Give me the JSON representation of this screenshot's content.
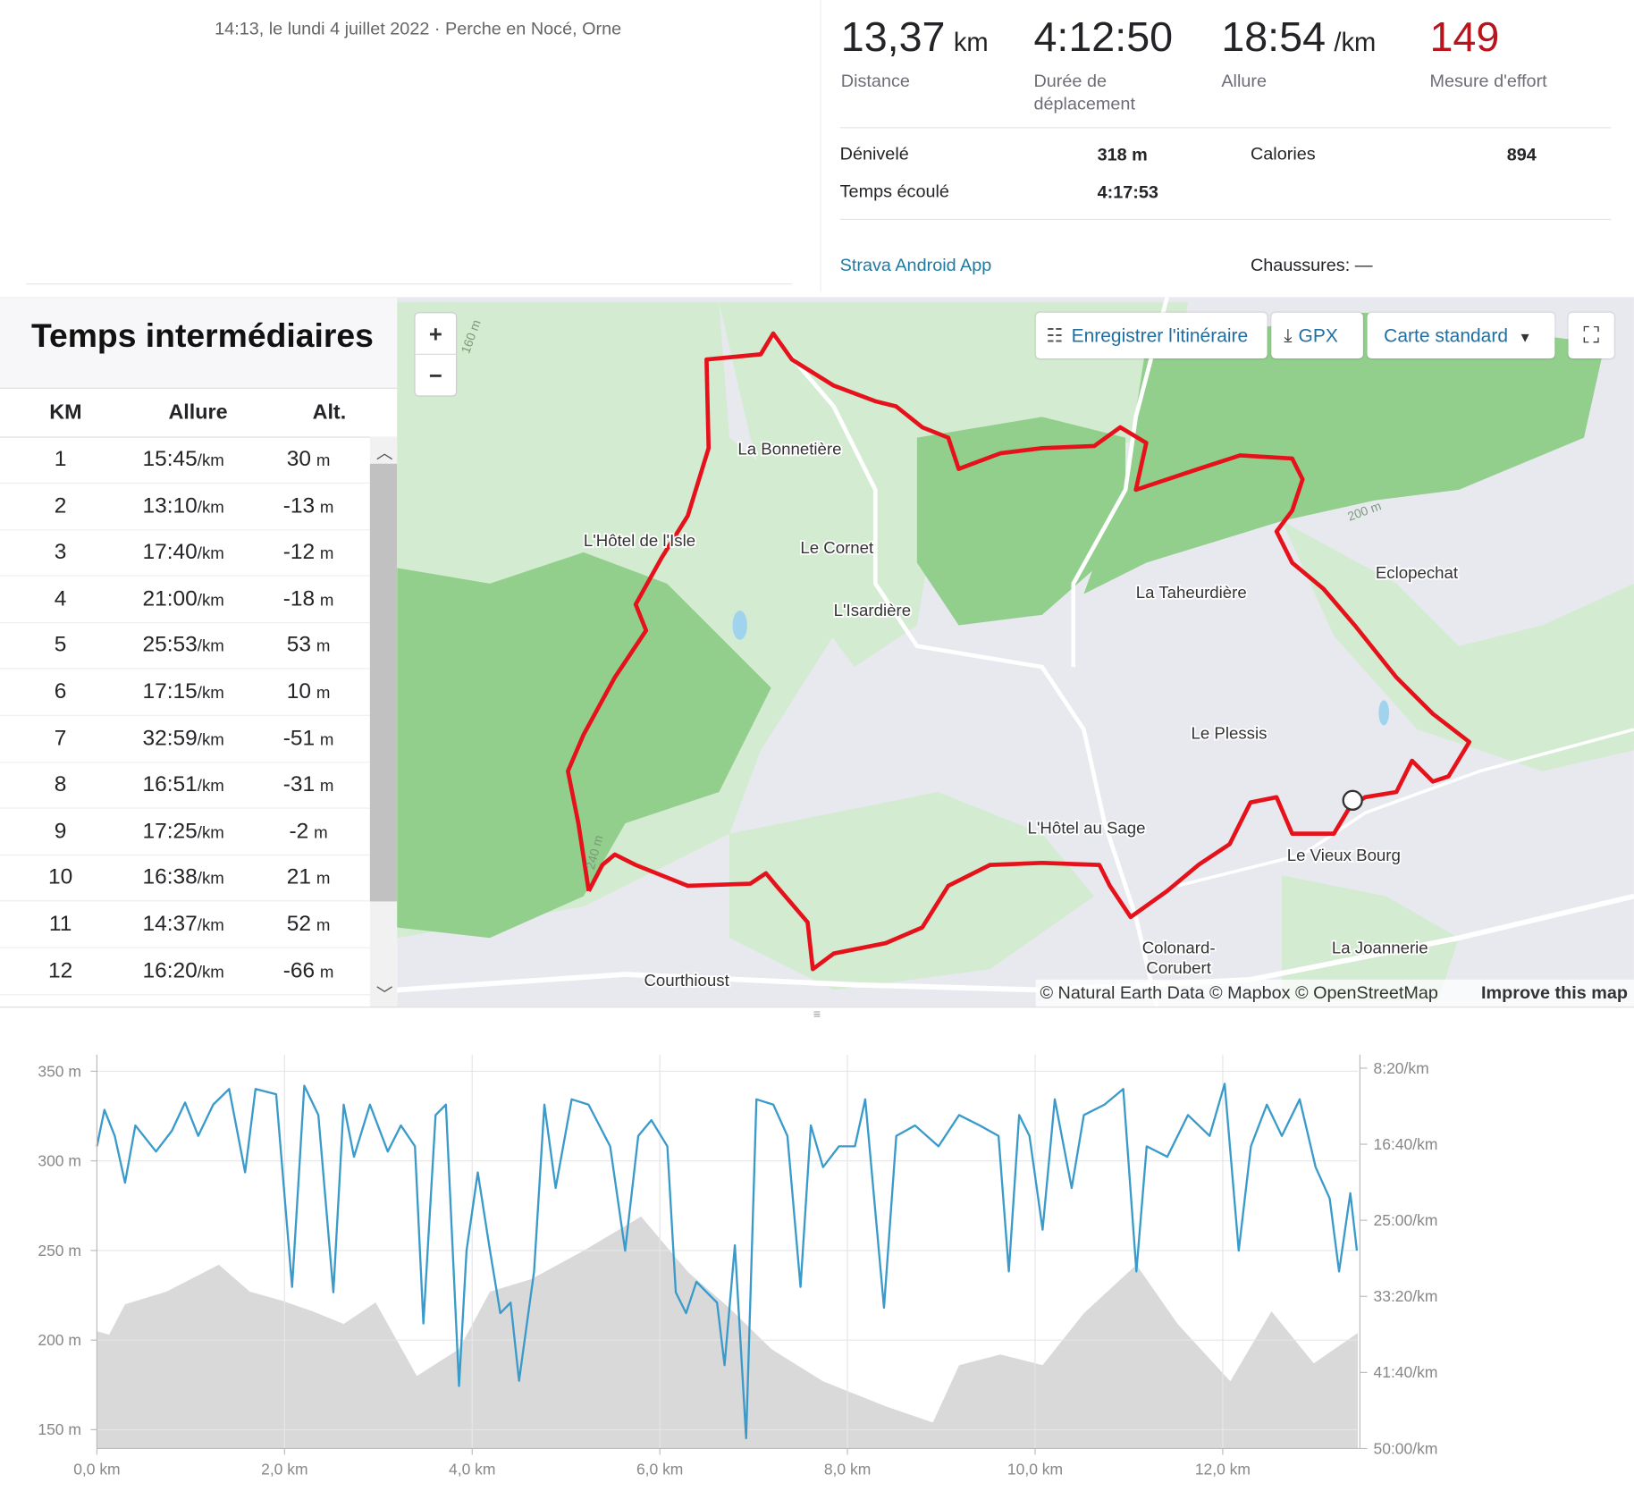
{
  "header": {
    "datetime_location": "14:13, le lundi 4 juillet 2022 · Perche en Nocé, Orne"
  },
  "stats": [
    {
      "value": "13,37",
      "unit": "km",
      "label": "Distance"
    },
    {
      "value": "4:12:50",
      "label": "Durée de déplacement"
    },
    {
      "value": "18:54",
      "unit": "/km",
      "label": "Allure"
    },
    {
      "value": "149",
      "label": "Mesure d'effort"
    }
  ],
  "details": [
    {
      "label": "Dénivelé",
      "value": "318 m"
    },
    {
      "label": "Calories",
      "value": "894"
    },
    {
      "label": "Temps écoulé",
      "value": "4:17:53"
    }
  ],
  "device": "Strava Android App",
  "shoes": "Chaussures: —",
  "splits": {
    "title": "Temps intermédiaires",
    "headers": [
      "KM",
      "Allure",
      "Alt."
    ],
    "rows": [
      {
        "km": "1",
        "pace": "15:45",
        "pace_unit": "/km",
        "alt": "30",
        "alt_unit": "m"
      },
      {
        "km": "2",
        "pace": "13:10",
        "pace_unit": "/km",
        "alt": "-13",
        "alt_unit": "m"
      },
      {
        "km": "3",
        "pace": "17:40",
        "pace_unit": "/km",
        "alt": "-12",
        "alt_unit": "m"
      },
      {
        "km": "4",
        "pace": "21:00",
        "pace_unit": "/km",
        "alt": "-18",
        "alt_unit": "m"
      },
      {
        "km": "5",
        "pace": "25:53",
        "pace_unit": "/km",
        "alt": "53",
        "alt_unit": "m"
      },
      {
        "km": "6",
        "pace": "17:15",
        "pace_unit": "/km",
        "alt": "10",
        "alt_unit": "m"
      },
      {
        "km": "7",
        "pace": "32:59",
        "pace_unit": "/km",
        "alt": "-51",
        "alt_unit": "m"
      },
      {
        "km": "8",
        "pace": "16:51",
        "pace_unit": "/km",
        "alt": "-31",
        "alt_unit": "m"
      },
      {
        "km": "9",
        "pace": "17:25",
        "pace_unit": "/km",
        "alt": "-2",
        "alt_unit": "m"
      },
      {
        "km": "10",
        "pace": "16:38",
        "pace_unit": "/km",
        "alt": "21",
        "alt_unit": "m"
      },
      {
        "km": "11",
        "pace": "14:37",
        "pace_unit": "/km",
        "alt": "52",
        "alt_unit": "m"
      },
      {
        "km": "12",
        "pace": "16:20",
        "pace_unit": "/km",
        "alt": "-66",
        "alt_unit": "m"
      }
    ]
  },
  "map": {
    "zoom_in": "+",
    "zoom_out": "−",
    "buttons": [
      "Enregistrer l'itinéraire",
      "GPX",
      "Carte standard"
    ],
    "places": [
      "La Bonnetière",
      "L'Hôtel de l'Isle",
      "Le Cornet",
      "L'Isardière",
      "La Taheurdière",
      "Eclopechat",
      "Le Plessis",
      "L'Hôtel au Sage",
      "Le Vieux Bourg",
      "Colonard-",
      "Corubert",
      "La Joannerie",
      "Courthioust"
    ],
    "contours": [
      "160 m",
      "200 m",
      "240 m"
    ],
    "attribution": "© Natural Earth Data © Mapbox © OpenStreetMap",
    "improve": "Improve this map"
  },
  "chart_data": {
    "type": "area",
    "xlim": [
      0,
      13.44
    ],
    "xticks": [
      {
        "value": 0,
        "label": "0,0 km"
      },
      {
        "value": 2,
        "label": "2,0 km"
      },
      {
        "value": 4,
        "label": "4,0 km"
      },
      {
        "value": 6,
        "label": "6,0 km"
      },
      {
        "value": 8,
        "label": "8,0 km"
      },
      {
        "value": 10,
        "label": "10,0 km"
      },
      {
        "value": 12,
        "label": "12,0 km"
      }
    ],
    "ylim": [
      139.5,
      359.3
    ],
    "yticks": [
      {
        "value": 150,
        "label": "150 m"
      },
      {
        "value": 200,
        "label": "200 m"
      },
      {
        "value": 250,
        "label": "250 m"
      },
      {
        "value": 300,
        "label": "300 m"
      },
      {
        "value": 350,
        "label": "350 m"
      }
    ],
    "y2lim": [
      3000,
      411
    ],
    "y2ticks": [
      {
        "value": 500,
        "label": "8:20/km"
      },
      {
        "value": 1000,
        "label": "16:40/km"
      },
      {
        "value": 1500,
        "label": "25:00/km"
      },
      {
        "value": 2000,
        "label": "33:20/km"
      },
      {
        "value": 2500,
        "label": "41:40/km"
      },
      {
        "value": 3000,
        "label": "50:00/km"
      }
    ],
    "grid": true,
    "series": [
      {
        "type": "area",
        "color": "#d9d9d9",
        "x": [
          0,
          0.13,
          0.3,
          0.74,
          1.3,
          1.63,
          1.97,
          2.3,
          2.63,
          2.97,
          3.41,
          3.86,
          4.19,
          4.63,
          5.19,
          5.8,
          6.3,
          6.74,
          7.19,
          7.74,
          8.41,
          8.91,
          9.19,
          9.63,
          10.08,
          10.52,
          11.08,
          11.52,
          12.08,
          12.52,
          12.97,
          13.44
        ],
        "values": [
          205,
          203,
          220,
          227,
          242,
          227,
          222,
          216,
          209,
          221,
          180,
          195,
          227,
          234,
          250,
          269,
          238,
          218,
          195,
          177,
          163,
          154,
          186,
          192,
          186,
          215,
          242,
          209,
          177,
          216,
          187,
          204
        ]
      },
      {
        "type": "line",
        "axis": "y2",
        "color": "#3a9bcb",
        "x": [
          0,
          0.08,
          0.19,
          0.3,
          0.41,
          0.63,
          0.8,
          0.94,
          1.08,
          1.24,
          1.41,
          1.58,
          1.69,
          1.91,
          2.08,
          2.21,
          2.36,
          2.52,
          2.63,
          2.74,
          2.91,
          3.1,
          3.24,
          3.39,
          3.48,
          3.61,
          3.72,
          3.86,
          3.94,
          4.06,
          4.19,
          4.3,
          4.41,
          4.5,
          4.66,
          4.77,
          4.89,
          5.06,
          5.24,
          5.47,
          5.63,
          5.77,
          5.91,
          6.08,
          6.17,
          6.28,
          6.39,
          6.5,
          6.61,
          6.69,
          6.8,
          6.92,
          7.03,
          7.21,
          7.36,
          7.5,
          7.61,
          7.74,
          7.91,
          8.08,
          8.19,
          8.39,
          8.52,
          8.72,
          8.97,
          9.19,
          9.41,
          9.61,
          9.72,
          9.83,
          9.94,
          10.08,
          10.21,
          10.39,
          10.52,
          10.74,
          10.94,
          11.08,
          11.19,
          11.41,
          11.63,
          11.86,
          12.02,
          12.17,
          12.3,
          12.47,
          12.63,
          12.82,
          12.99,
          13.14,
          13.24,
          13.36,
          13.43
        ],
        "values": [
          1014,
          774,
          945,
          1253,
          877,
          1048,
          911,
          726,
          945,
          740,
          637,
          1185,
          637,
          671,
          1938,
          616,
          808,
          1973,
          740,
          1082,
          740,
          1048,
          877,
          1014,
          2178,
          808,
          740,
          2589,
          1699,
          1185,
          1699,
          2110,
          2041,
          2555,
          1836,
          740,
          1288,
          705,
          740,
          1014,
          1699,
          945,
          842,
          1014,
          1973,
          2110,
          1904,
          1973,
          2041,
          2452,
          1664,
          2932,
          705,
          740,
          945,
          1938,
          877,
          1151,
          1014,
          1014,
          705,
          2075,
          945,
          877,
          1014,
          808,
          877,
          945,
          1836,
          808,
          945,
          1562,
          705,
          1288,
          808,
          740,
          637,
          1836,
          1014,
          1082,
          808,
          945,
          603,
          1699,
          1014,
          740,
          945,
          705,
          1151,
          1356,
          1836,
          1322,
          1699
        ]
      }
    ]
  }
}
